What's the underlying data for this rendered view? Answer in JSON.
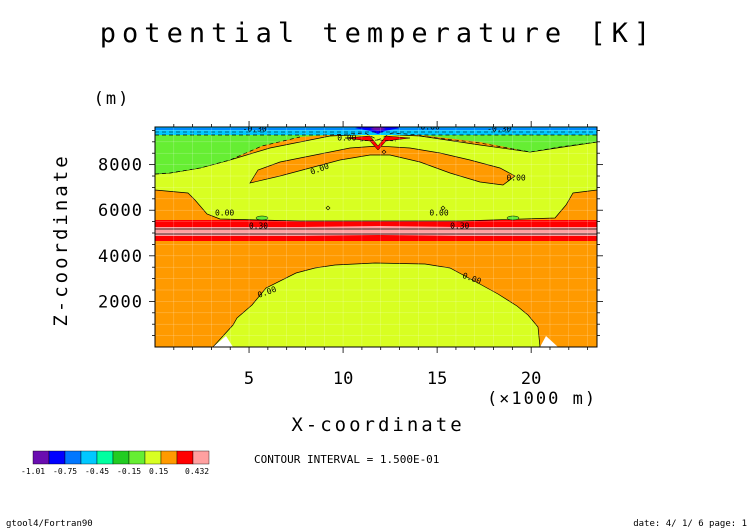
{
  "chart_data": {
    "type": "contour",
    "title": "potential temperature [K]",
    "xlabel": "X-coordinate",
    "xunit": "(×1000 m)",
    "ylabel": "Z-coordinate",
    "yunit": "(m)",
    "xlim": [
      0,
      23.5
    ],
    "ylim": [
      0,
      9650
    ],
    "xticks": [
      5,
      10,
      15,
      20
    ],
    "xtick_labels": [
      "5",
      "10",
      "15",
      "20"
    ],
    "yticks": [
      2000,
      4000,
      6000,
      8000
    ],
    "ytick_labels": [
      "2000",
      "4000",
      "6000",
      "8000"
    ],
    "contour_interval_text": "CONTOUR INTERVAL = 1.500E-01",
    "contour_labels": [
      {
        "text": "-0.30",
        "x": 5.3,
        "y": 9450
      },
      {
        "text": "0.00",
        "x": 10.2,
        "y": 9050
      },
      {
        "text": "-0.60",
        "x": 14.5,
        "y": 9550
      },
      {
        "text": "-0.30",
        "x": 18.3,
        "y": 9450
      },
      {
        "text": "0.00",
        "x": 8.8,
        "y": 7700
      },
      {
        "text": "0.00",
        "x": 19.2,
        "y": 7300
      },
      {
        "text": "0.00",
        "x": 3.7,
        "y": 5760
      },
      {
        "text": "0.00",
        "x": 15.1,
        "y": 5760
      },
      {
        "text": "0.30",
        "x": 5.5,
        "y": 5200
      },
      {
        "text": "0.30",
        "x": 16.2,
        "y": 5200
      },
      {
        "text": "0.00",
        "x": 6.0,
        "y": 2300
      },
      {
        "text": "0.00",
        "x": 16.8,
        "y": 2900
      }
    ],
    "colorbar": {
      "colors": [
        "#6a0db0",
        "#0000ff",
        "#0077ff",
        "#00c8ff",
        "#00ffa0",
        "#22cc22",
        "#66ee33",
        "#d8ff22",
        "#ff9a00",
        "#ff0000",
        "#ffa0a0"
      ],
      "labels": [
        "-1.01",
        "-0.75",
        "-0.45",
        "-0.15",
        "0.15",
        "0.432"
      ]
    }
  },
  "footer": {
    "left": "gtool4/Fortran90",
    "right": "date: 4/ 1/ 6 page: 1"
  },
  "colors": {
    "orange": "#ff9a00",
    "yellow": "#d8ff22",
    "green": "#66ee33",
    "red": "#ff0000",
    "pink": "#ffa0a0",
    "cyan": "#00c8ff",
    "blue": "#0000ff",
    "purple": "#6a0db0"
  }
}
